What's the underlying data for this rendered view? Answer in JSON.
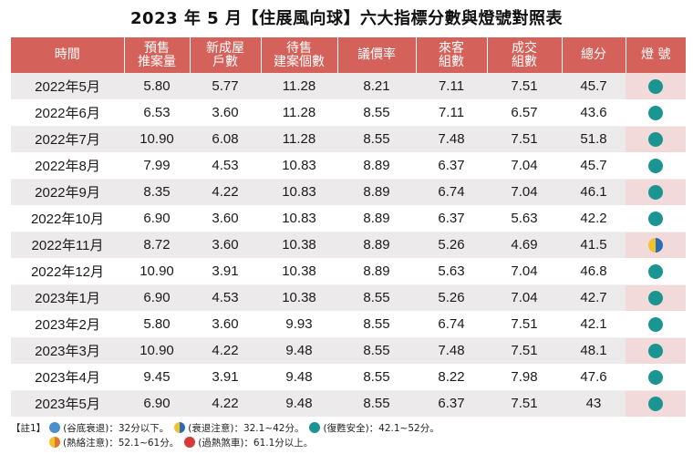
{
  "title": "2023 年 5 月【住展風向球】六大指標分數與燈號對照表",
  "chart_data": {
    "type": "table",
    "columns": [
      "時間",
      "預售\n推案量",
      "新成屋\n戶數",
      "待售\n建案個數",
      "議價率",
      "來客\n組數",
      "成交\n組數",
      "總分",
      "燈 號"
    ],
    "header_lines": [
      [
        "時間"
      ],
      [
        "預售",
        "推案量"
      ],
      [
        "新成屋",
        "戶數"
      ],
      [
        "待售",
        "建案個數"
      ],
      [
        "議價率"
      ],
      [
        "來客",
        "組數"
      ],
      [
        "成交",
        "組數"
      ],
      [
        "總分"
      ],
      [
        "燈 號"
      ]
    ],
    "rows": [
      {
        "time": "2022年5月",
        "presale": "5.80",
        "new_units": "5.77",
        "pending": "11.28",
        "bargain": "8.21",
        "visitors": "7.11",
        "deals": "7.51",
        "total": "45.7",
        "light": "teal"
      },
      {
        "time": "2022年6月",
        "presale": "6.53",
        "new_units": "3.60",
        "pending": "11.28",
        "bargain": "8.55",
        "visitors": "7.11",
        "deals": "6.57",
        "total": "43.6",
        "light": "teal"
      },
      {
        "time": "2022年7月",
        "presale": "10.90",
        "new_units": "6.08",
        "pending": "11.28",
        "bargain": "8.55",
        "visitors": "7.48",
        "deals": "7.51",
        "total": "51.8",
        "light": "teal"
      },
      {
        "time": "2022年8月",
        "presale": "7.99",
        "new_units": "4.53",
        "pending": "10.83",
        "bargain": "8.89",
        "visitors": "6.37",
        "deals": "7.04",
        "total": "45.7",
        "light": "teal"
      },
      {
        "time": "2022年9月",
        "presale": "8.35",
        "new_units": "4.22",
        "pending": "10.83",
        "bargain": "8.89",
        "visitors": "6.74",
        "deals": "7.04",
        "total": "46.1",
        "light": "teal"
      },
      {
        "time": "2022年10月",
        "presale": "6.90",
        "new_units": "3.60",
        "pending": "10.83",
        "bargain": "8.89",
        "visitors": "6.37",
        "deals": "5.63",
        "total": "42.2",
        "light": "teal"
      },
      {
        "time": "2022年11月",
        "presale": "8.72",
        "new_units": "3.60",
        "pending": "10.38",
        "bargain": "8.89",
        "visitors": "5.26",
        "deals": "4.69",
        "total": "41.5",
        "light": "yellow-blue"
      },
      {
        "time": "2022年12月",
        "presale": "10.90",
        "new_units": "3.91",
        "pending": "10.38",
        "bargain": "8.89",
        "visitors": "5.63",
        "deals": "7.04",
        "total": "46.8",
        "light": "teal"
      },
      {
        "time": "2023年1月",
        "presale": "6.90",
        "new_units": "4.53",
        "pending": "10.38",
        "bargain": "8.55",
        "visitors": "5.26",
        "deals": "7.04",
        "total": "42.7",
        "light": "teal"
      },
      {
        "time": "2023年2月",
        "presale": "5.80",
        "new_units": "3.60",
        "pending": "9.93",
        "bargain": "8.55",
        "visitors": "6.74",
        "deals": "7.51",
        "total": "42.1",
        "light": "teal"
      },
      {
        "time": "2023年3月",
        "presale": "10.90",
        "new_units": "4.22",
        "pending": "9.48",
        "bargain": "8.55",
        "visitors": "7.48",
        "deals": "7.51",
        "total": "48.1",
        "light": "teal"
      },
      {
        "time": "2023年4月",
        "presale": "9.45",
        "new_units": "3.91",
        "pending": "9.48",
        "bargain": "8.55",
        "visitors": "8.22",
        "deals": "7.98",
        "total": "47.6",
        "light": "teal"
      },
      {
        "time": "2023年5月",
        "presale": "6.90",
        "new_units": "4.22",
        "pending": "9.48",
        "bargain": "8.55",
        "visitors": "6.37",
        "deals": "7.51",
        "total": "43",
        "light": "teal"
      }
    ]
  },
  "legend": {
    "note_label": "【註1】",
    "items": [
      {
        "icon": "blue",
        "text": "(谷底衰退)：32分以下。"
      },
      {
        "icon": "yellow-blue",
        "text": "(衰退注意)：32.1~42分。"
      },
      {
        "icon": "teal",
        "text": "(復甦安全)：42.1~52分。"
      },
      {
        "icon": "orange",
        "text": "(熱絡注意)：52.1~61分。"
      },
      {
        "icon": "red",
        "text": "(過熱煞車)：61.1分以上。"
      }
    ]
  },
  "colors": {
    "header_bg": "#d4625a",
    "row_alt_bg": "#eceaea",
    "light_cell_alt_bg": "#f3dada",
    "teal": "#1b9591",
    "yellow": "#f2c12e",
    "blue": "#2a6db5",
    "red": "#d23b37",
    "orange": "#e0772f"
  }
}
